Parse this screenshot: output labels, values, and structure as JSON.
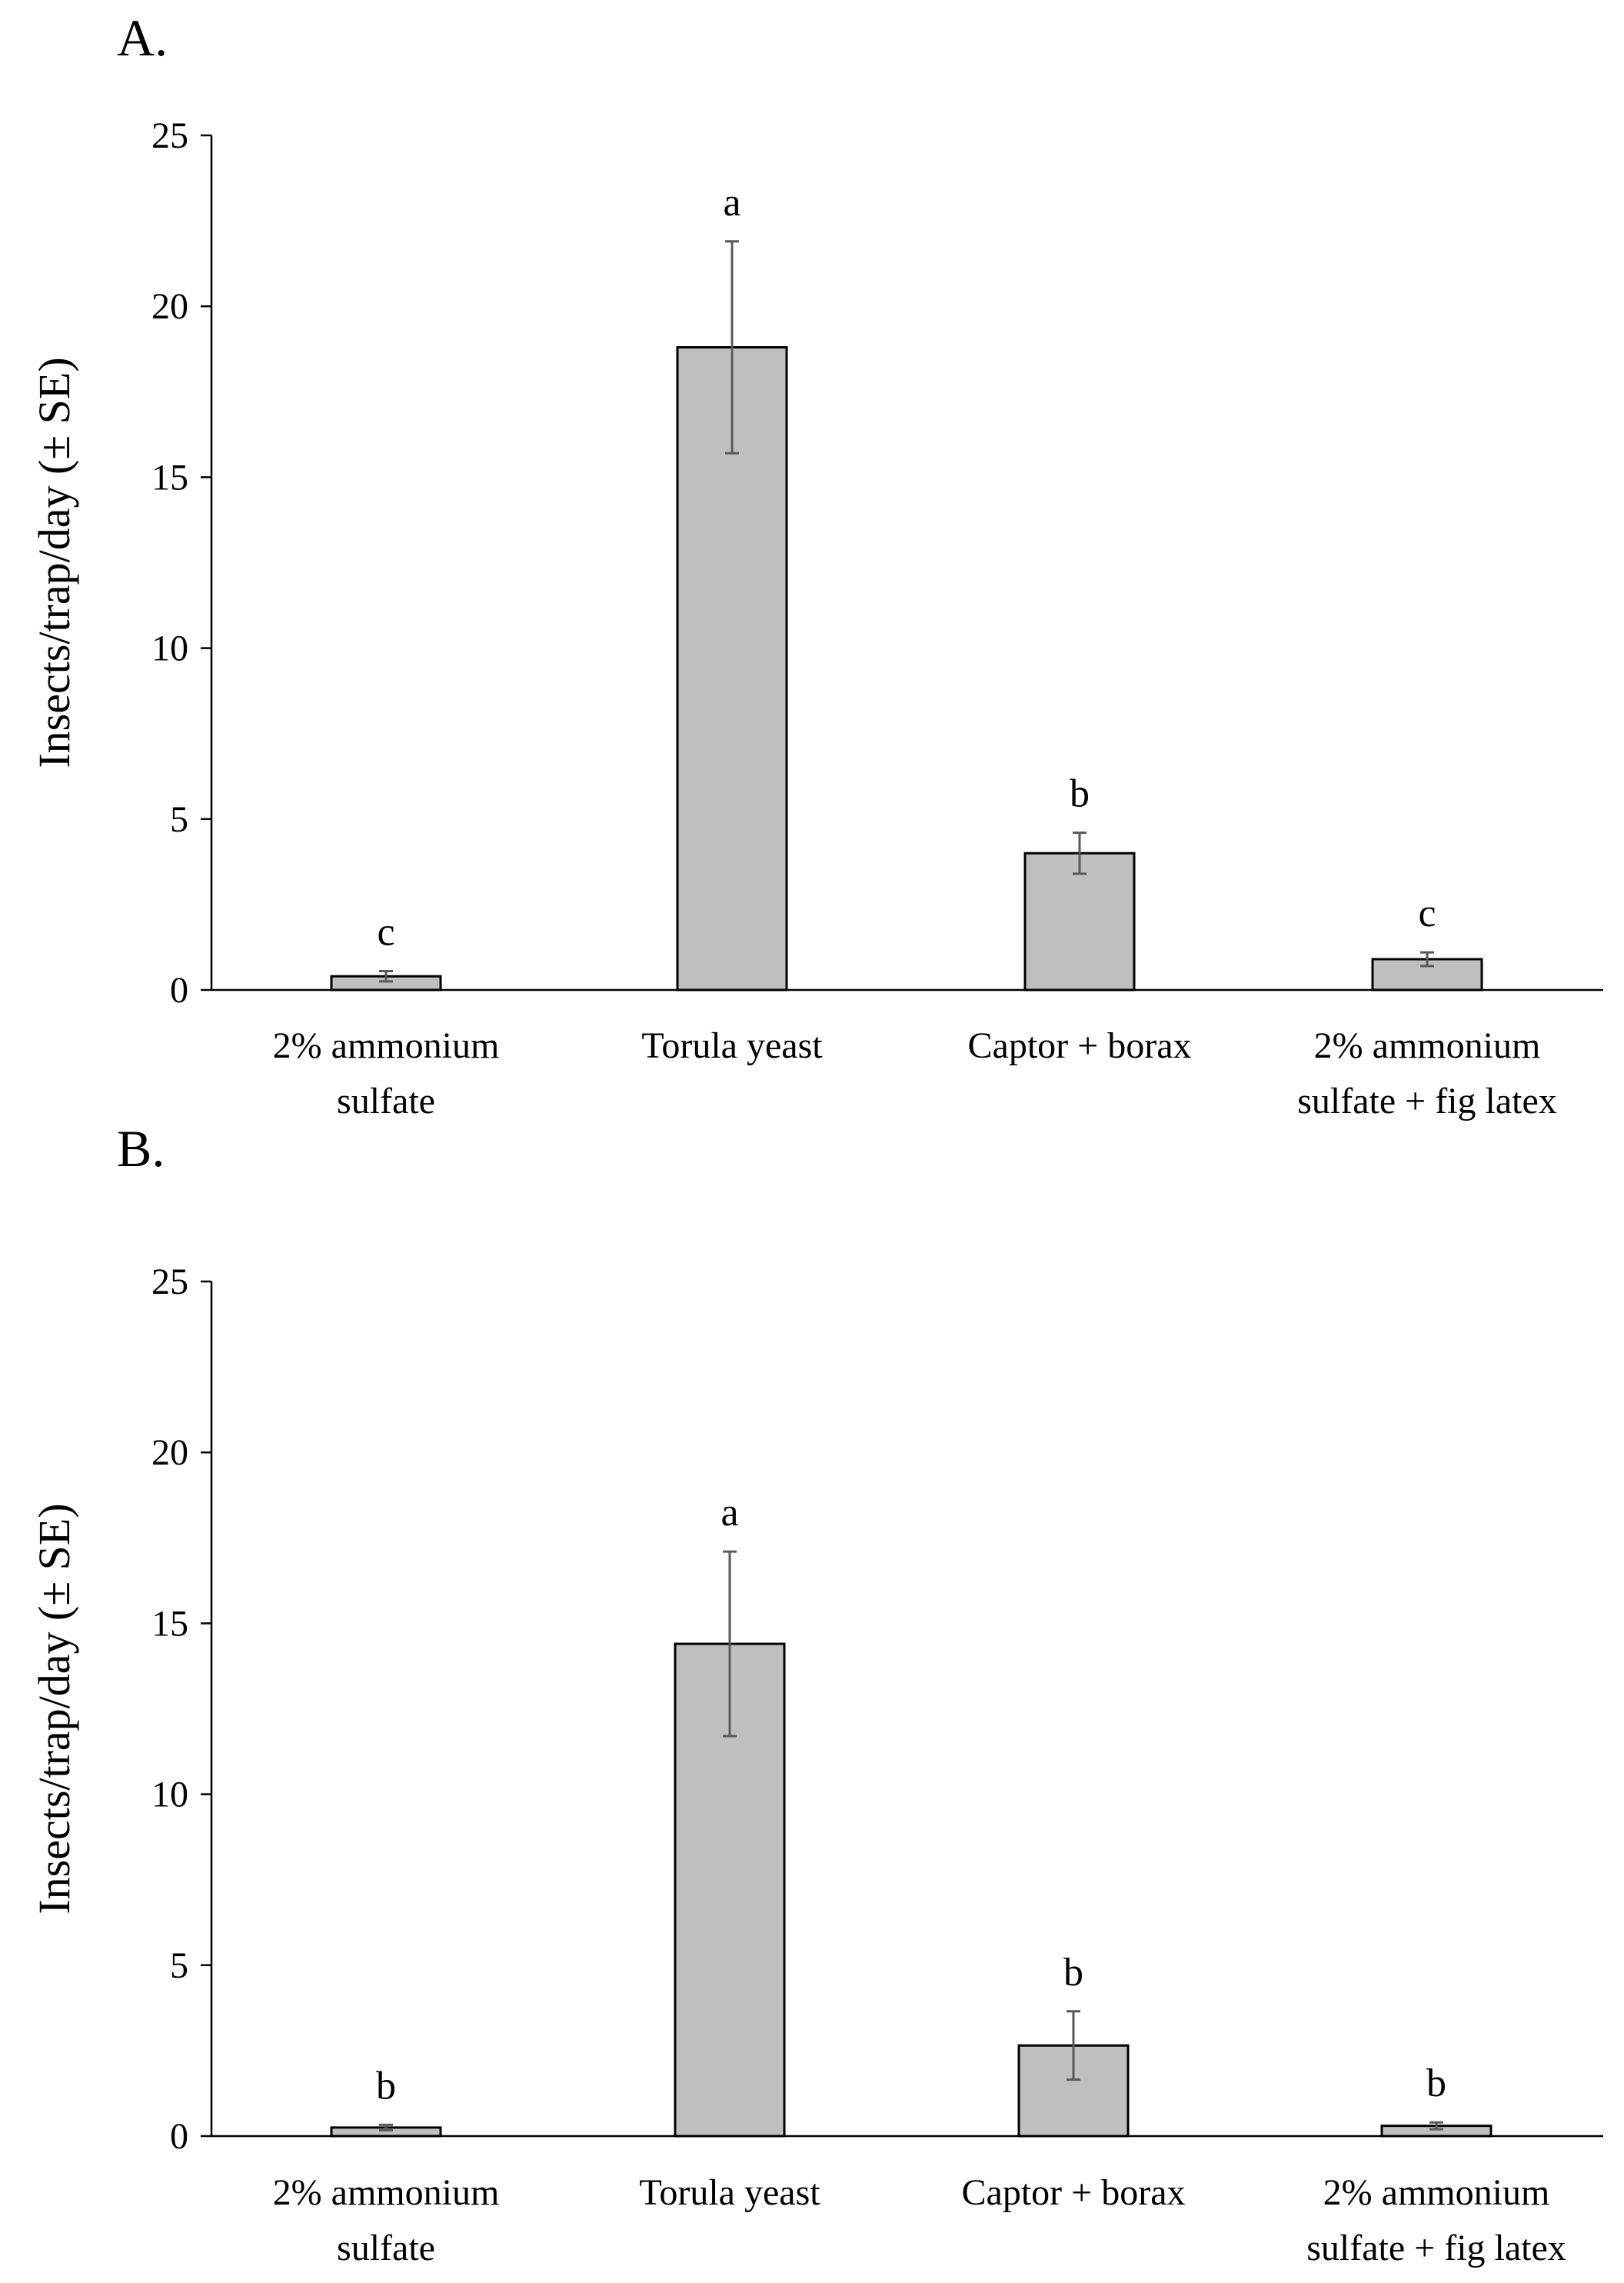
{
  "figure": {
    "panels": [
      "A.",
      "B."
    ]
  },
  "chart_data": [
    {
      "panel": "A.",
      "type": "bar",
      "title": "",
      "xlabel": "",
      "ylabel": "Insects/trap/day (± SE)",
      "ylim": [
        0,
        25
      ],
      "yticks": [
        0,
        5,
        10,
        15,
        20,
        25
      ],
      "grid": false,
      "categories": [
        [
          "2% ammonium",
          "sulfate"
        ],
        [
          "Torula yeast"
        ],
        [
          "Captor + borax"
        ],
        [
          "2% ammonium",
          "sulfate + fig latex"
        ]
      ],
      "values": [
        0.4,
        18.8,
        4.0,
        0.9
      ],
      "errors": [
        0.15,
        3.1,
        0.6,
        0.2
      ],
      "significance": [
        "c",
        "a",
        "b",
        "c"
      ],
      "bar_color": "#bfbfbf"
    },
    {
      "panel": "B.",
      "type": "bar",
      "title": "",
      "xlabel": "",
      "ylabel": "Insects/trap/day (± SE)",
      "ylim": [
        0,
        25
      ],
      "yticks": [
        0,
        5,
        10,
        15,
        20,
        25
      ],
      "grid": false,
      "categories": [
        [
          "2% ammonium",
          "sulfate"
        ],
        [
          "Torula yeast"
        ],
        [
          "Captor + borax"
        ],
        [
          "2% ammonium",
          "sulfate + fig latex"
        ]
      ],
      "values": [
        0.25,
        14.4,
        2.65,
        0.3
      ],
      "errors": [
        0.08,
        2.7,
        1.0,
        0.1
      ],
      "significance": [
        "b",
        "a",
        "b",
        "b"
      ],
      "bar_color": "#bfbfbf"
    }
  ]
}
